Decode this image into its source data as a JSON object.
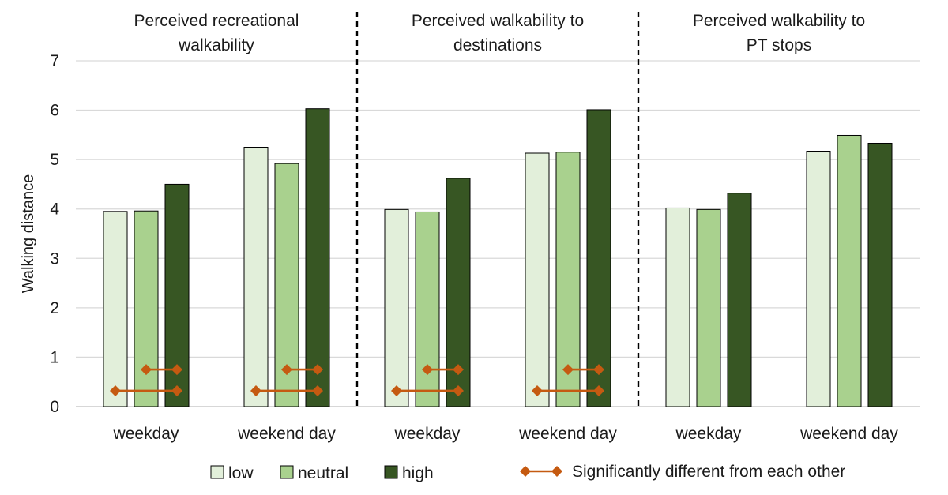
{
  "chart_data": {
    "type": "bar",
    "ylabel": "Walking distance",
    "ylim": [
      0,
      7
    ],
    "yticks": [
      "0",
      "1",
      "2",
      "3",
      "4",
      "5",
      "6",
      "7"
    ],
    "grid": true,
    "legend_position": "bottom",
    "colors": {
      "low": "#e2efda",
      "neutral": "#a9d18e",
      "high": "#375623",
      "significance": "#c55a11"
    },
    "panels": [
      {
        "title": [
          "Perceived recreational",
          "walkability"
        ],
        "categories": [
          "weekday",
          "weekend day"
        ],
        "series": [
          {
            "name": "low",
            "values": [
              3.95,
              5.25
            ]
          },
          {
            "name": "neutral",
            "values": [
              3.96,
              4.92
            ]
          },
          {
            "name": "high",
            "values": [
              4.5,
              6.03
            ]
          }
        ],
        "significance": [
          {
            "category": "weekday",
            "from": "neutral",
            "to": "high",
            "level": 0.75
          },
          {
            "category": "weekday",
            "from": "low",
            "to": "high",
            "level": 0.32
          },
          {
            "category": "weekend day",
            "from": "neutral",
            "to": "high",
            "level": 0.75
          },
          {
            "category": "weekend day",
            "from": "low",
            "to": "high",
            "level": 0.32
          }
        ]
      },
      {
        "title": [
          "Perceived walkability to",
          "destinations"
        ],
        "categories": [
          "weekday",
          "weekend day"
        ],
        "series": [
          {
            "name": "low",
            "values": [
              3.99,
              5.13
            ]
          },
          {
            "name": "neutral",
            "values": [
              3.94,
              5.15
            ]
          },
          {
            "name": "high",
            "values": [
              4.62,
              6.01
            ]
          }
        ],
        "significance": [
          {
            "category": "weekday",
            "from": "neutral",
            "to": "high",
            "level": 0.75
          },
          {
            "category": "weekday",
            "from": "low",
            "to": "high",
            "level": 0.32
          },
          {
            "category": "weekend day",
            "from": "neutral",
            "to": "high",
            "level": 0.75
          },
          {
            "category": "weekend day",
            "from": "low",
            "to": "high",
            "level": 0.32
          }
        ]
      },
      {
        "title": [
          "Perceived walkability to",
          "PT stops"
        ],
        "categories": [
          "weekday",
          "weekend day"
        ],
        "series": [
          {
            "name": "low",
            "values": [
              4.02,
              5.17
            ]
          },
          {
            "name": "neutral",
            "values": [
              3.99,
              5.49
            ]
          },
          {
            "name": "high",
            "values": [
              4.32,
              5.33
            ]
          }
        ],
        "significance": []
      }
    ],
    "legend": {
      "low": "low",
      "neutral": "neutral",
      "high": "high",
      "significance": "Significantly different from each other"
    }
  }
}
